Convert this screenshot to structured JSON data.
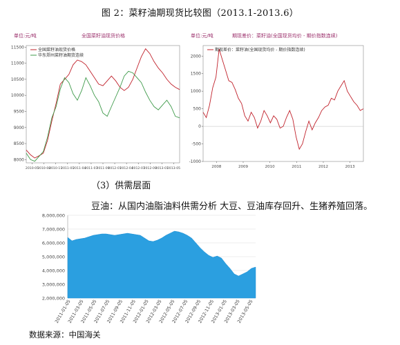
{
  "figure_title": "图 2：菜籽油期现货比较图（2013.1-2013.6）",
  "section_heading": "（3）供需层面",
  "paragraph": "豆油：从国内油脂油料供需分析 大豆、豆油库存回升、生猪养殖回落。",
  "source_note": "数据来源：中国海关",
  "colors": {
    "red": "#c0202a",
    "green": "#3e9a4a",
    "blue_fill": "#2b9fe0",
    "label_purple": "#9b2f6b"
  },
  "chart_data": [
    {
      "type": "line",
      "unit_label": "单位:元/吨",
      "title": "全国菜籽油现货价格",
      "x_ticks": [
        "2010-05",
        "2010-08",
        "2010-11",
        "2011-01",
        "2011-04",
        "2011-07",
        "2011-09",
        "2012-01",
        "2012-04",
        "2012-07",
        "2012-09",
        "2013-01",
        "2013-05"
      ],
      "y_ticks": [
        8000,
        8500,
        9000,
        9500,
        10000,
        10500,
        11000,
        11500
      ],
      "ylim": [
        7900,
        11550
      ],
      "series": [
        {
          "name": "全国菜籽油现货价格",
          "color": "red",
          "values": [
            8300,
            8150,
            8050,
            8120,
            8200,
            8600,
            9200,
            9750,
            10350,
            10500,
            10650,
            10950,
            11100,
            11050,
            10950,
            10750,
            10550,
            10350,
            10300,
            10450,
            10600,
            10450,
            10250,
            10150,
            10250,
            10500,
            10850,
            11200,
            11450,
            11300,
            11050,
            10850,
            10700,
            10500,
            10350,
            10250,
            10180
          ]
        },
        {
          "name": "华东郑州菜籽油期货连续",
          "color": "green",
          "values": [
            8200,
            8000,
            7950,
            8100,
            8250,
            8700,
            9300,
            9650,
            10200,
            10550,
            10400,
            10050,
            9850,
            10150,
            10550,
            10300,
            10000,
            9800,
            9450,
            9350,
            9650,
            9950,
            10250,
            10600,
            10750,
            10700,
            10550,
            10400,
            10100,
            9850,
            9650,
            9550,
            9700,
            9850,
            9650,
            9350,
            9300
          ]
        }
      ]
    },
    {
      "type": "line",
      "unit_label": "单位:元/吨",
      "title": "期现差价：菜籽油(全国现货均价 - 期价指数连续)",
      "x_ticks": [
        "2008",
        "2009",
        "2010",
        "2011",
        "2012",
        "2013"
      ],
      "y_ticks": [
        -1000,
        -500,
        0,
        500,
        1000,
        1500,
        2000
      ],
      "ylim": [
        -1000,
        2300
      ],
      "series": [
        {
          "name": "期现差价：菜籽油(全国现货均价 - 期价指数连续)",
          "color": "red",
          "values": [
            400,
            250,
            600,
            1100,
            1400,
            2200,
            1900,
            1600,
            1300,
            1250,
            1050,
            800,
            650,
            300,
            150,
            400,
            250,
            -50,
            150,
            450,
            300,
            100,
            300,
            200,
            -50,
            0,
            250,
            450,
            200,
            -300,
            -650,
            -500,
            -150,
            150,
            -100,
            100,
            250,
            450,
            550,
            600,
            800,
            750,
            1000,
            1150,
            1300,
            1000,
            850,
            700,
            600,
            450,
            500
          ]
        }
      ]
    },
    {
      "type": "area",
      "x_ticks": [
        "2011-01-05",
        "2011-03-05",
        "2011-05-05",
        "2011-07-05",
        "2011-09-05",
        "2011-11-05",
        "2012-01-05",
        "2012-03-05",
        "2012-05-05",
        "2012-07-05",
        "2012-09-05",
        "2012-11-05",
        "2013-01-05",
        "2013-03-05",
        "2013-05-05"
      ],
      "y_ticks": [
        "2,000,000",
        "3,000,000",
        "4,000,000",
        "5,000,000",
        "6,000,000",
        "7,000,000",
        "8,000,000"
      ],
      "ylim": [
        2000000,
        8000000
      ],
      "series": [
        {
          "color": "blue_fill",
          "values": [
            6400000,
            6150000,
            6250000,
            6300000,
            6350000,
            6450000,
            6550000,
            6600000,
            6650000,
            6650000,
            6600000,
            6550000,
            6600000,
            6650000,
            6700000,
            6650000,
            6600000,
            6550000,
            6350000,
            6150000,
            6100000,
            6200000,
            6350000,
            6550000,
            6700000,
            6850000,
            6800000,
            6700000,
            6550000,
            6350000,
            6000000,
            5650000,
            5350000,
            5100000,
            4950000,
            5050000,
            4900000,
            4500000,
            4150000,
            3750000,
            3600000,
            3750000,
            3900000,
            4150000,
            4250000
          ]
        }
      ]
    }
  ]
}
